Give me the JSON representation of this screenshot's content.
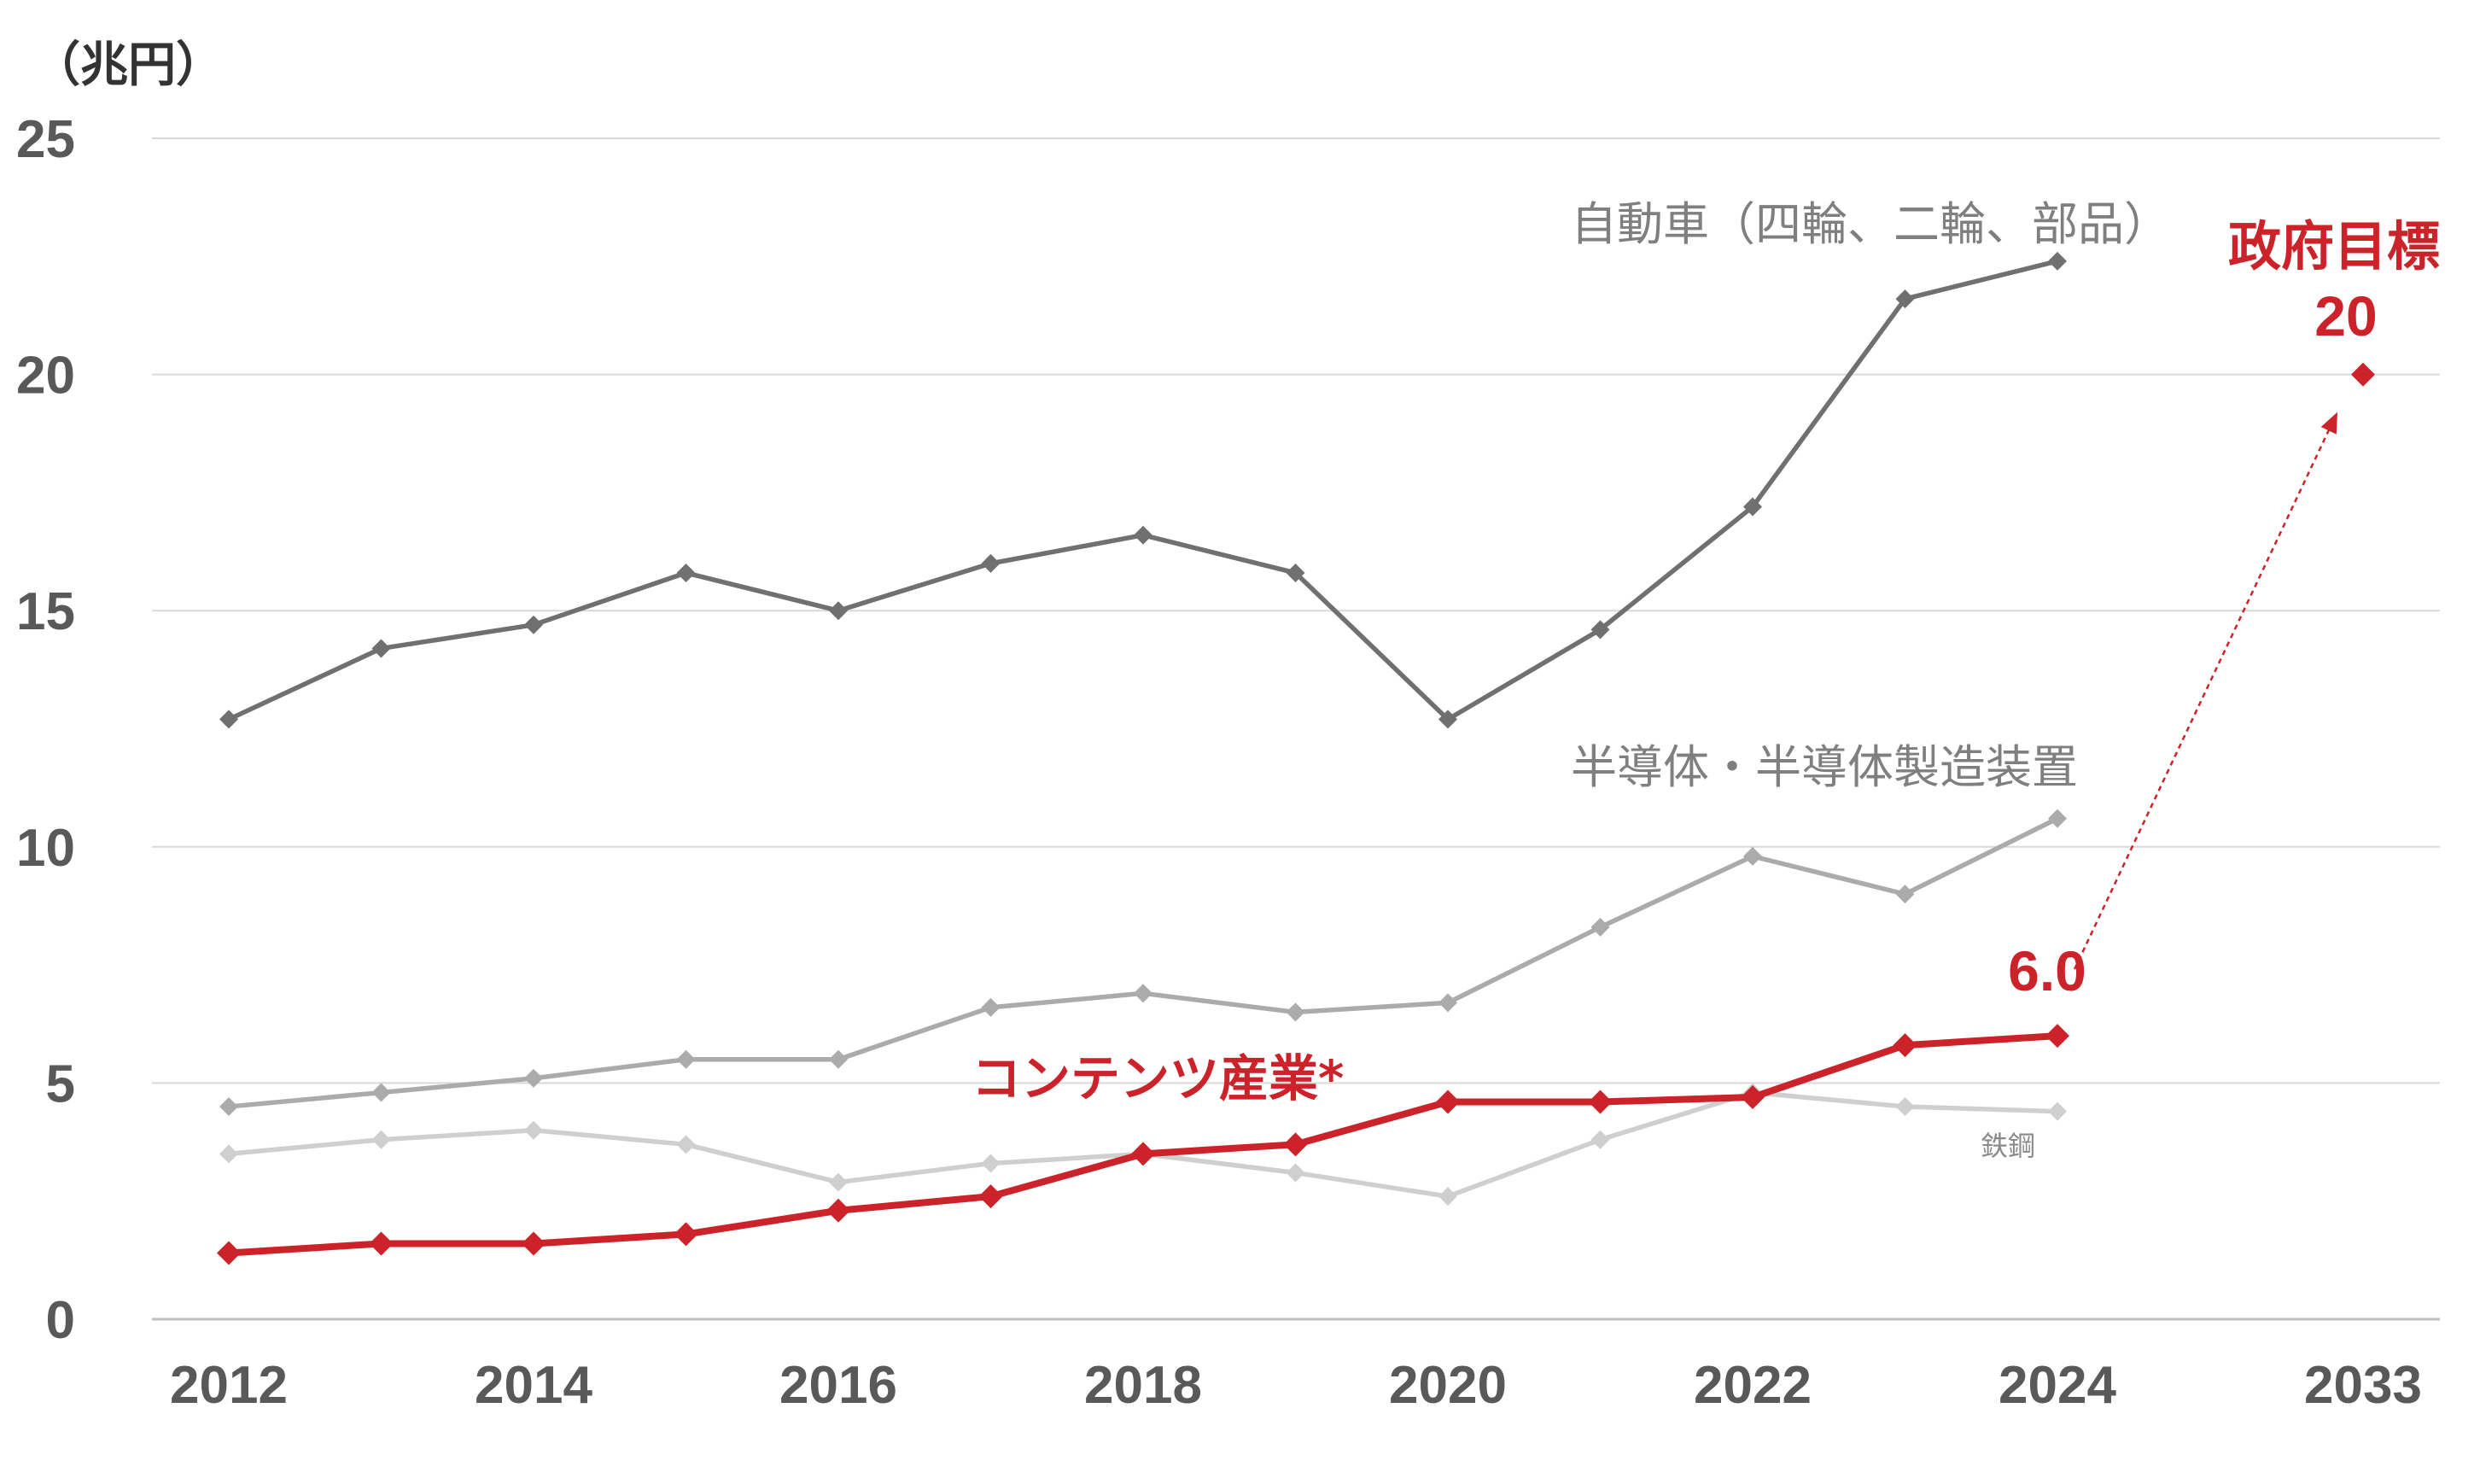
{
  "chart_data": {
    "type": "line",
    "y_unit": "（兆円）",
    "ylim": [
      0,
      25
    ],
    "y_ticks": [
      0,
      5,
      10,
      15,
      20,
      25
    ],
    "x_tick_labels": [
      "2012",
      "2014",
      "2016",
      "2018",
      "2020",
      "2022",
      "2024",
      "2033"
    ],
    "grid": true,
    "series": [
      {
        "name": "自動車（四輪、二輪、部品）",
        "color": "#707070",
        "x": [
          2012,
          2013,
          2014,
          2015,
          2016,
          2017,
          2018,
          2019,
          2020,
          2021,
          2022,
          2023,
          2024
        ],
        "values": [
          12.7,
          14.2,
          14.7,
          15.8,
          15.0,
          16.0,
          16.6,
          15.8,
          12.7,
          14.6,
          17.2,
          21.6,
          22.4
        ]
      },
      {
        "name": "半導体・半導体製造装置",
        "color": "#ababab",
        "x": [
          2012,
          2013,
          2014,
          2015,
          2016,
          2017,
          2018,
          2019,
          2020,
          2021,
          2022,
          2023,
          2024
        ],
        "values": [
          4.5,
          4.8,
          5.1,
          5.5,
          5.5,
          6.6,
          6.9,
          6.5,
          6.7,
          8.3,
          9.8,
          9.0,
          10.6
        ]
      },
      {
        "name": "鉄鋼",
        "color": "#cfcfcf",
        "x": [
          2012,
          2013,
          2014,
          2015,
          2016,
          2017,
          2018,
          2019,
          2020,
          2021,
          2022,
          2023,
          2024
        ],
        "values": [
          3.5,
          3.8,
          4.0,
          3.7,
          2.9,
          3.3,
          3.5,
          3.1,
          2.6,
          3.8,
          4.8,
          4.5,
          4.4
        ]
      },
      {
        "name": "コンテンツ産業*",
        "color": "#cc2229",
        "x": [
          2012,
          2013,
          2014,
          2015,
          2016,
          2017,
          2018,
          2019,
          2020,
          2021,
          2022,
          2023,
          2024
        ],
        "values": [
          1.4,
          1.6,
          1.6,
          1.8,
          2.3,
          2.6,
          3.5,
          3.7,
          4.6,
          4.6,
          4.7,
          5.8,
          6.0
        ]
      }
    ],
    "annotations": {
      "last_value": "6.0",
      "target": {
        "title": "政府目標",
        "value_label": "20",
        "year": 2033,
        "value": 20
      }
    }
  }
}
